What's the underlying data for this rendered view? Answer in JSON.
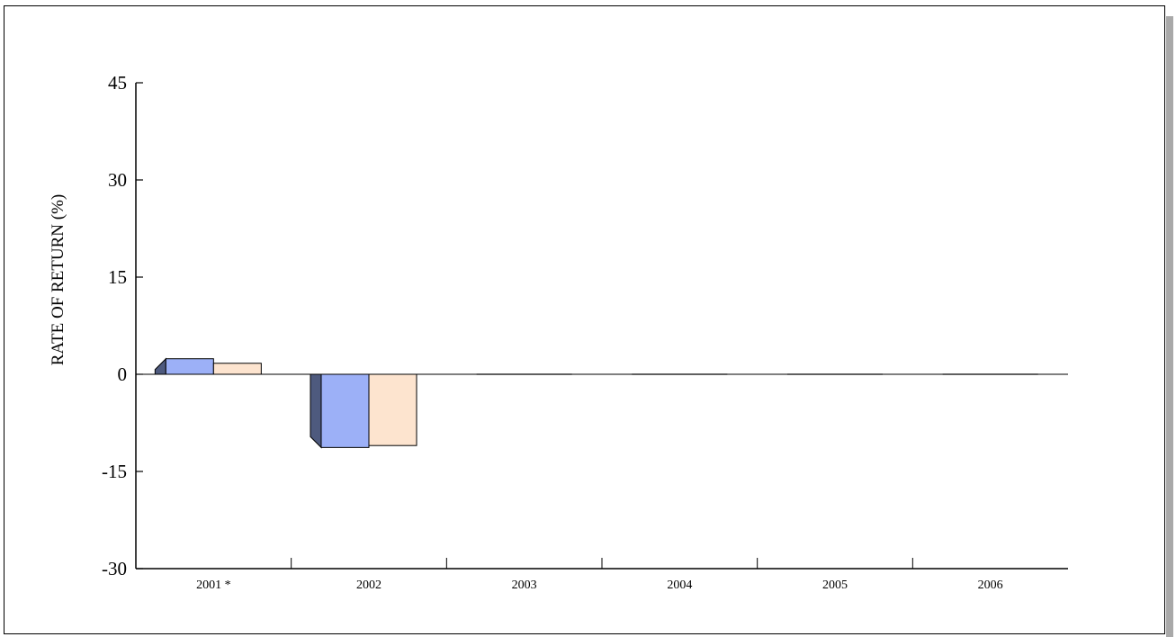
{
  "chart_data": {
    "type": "bar",
    "title": "",
    "xlabel": "",
    "ylabel": "RATE OF RETURN (%)",
    "categories": [
      "2001 *",
      "2002",
      "2003",
      "2004",
      "2005",
      "2006"
    ],
    "yticks": [
      "45",
      "30",
      "15",
      "0",
      "-15",
      "-30"
    ],
    "ylim": [
      -30,
      45
    ],
    "grid": false,
    "legend": "none",
    "series": [
      {
        "color": "#9cb0f7",
        "values": [
          2.4,
          -11.3,
          0,
          0,
          0,
          0
        ]
      },
      {
        "color": "#fde4cf",
        "values": [
          1.7,
          -11.0,
          0,
          0,
          0,
          0
        ]
      }
    ],
    "colors": {
      "bar_side": "#4e5a7e",
      "axis": "#000000",
      "frame_shadow": "#a9a9a9"
    }
  }
}
